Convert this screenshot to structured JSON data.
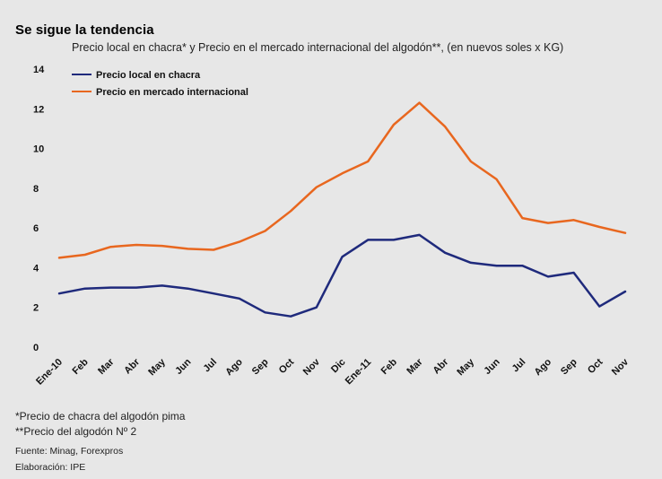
{
  "title": "Se sigue la tendencia",
  "subtitle": "Precio local en chacra* y Precio en el mercado internacional del algodón**, (en nuevos soles x KG)",
  "footnotes": {
    "note1": "*Precio de chacra del algodón pima",
    "note2": "**Precio del algodón Nº 2",
    "source": "Fuente: Minag, Forexpros",
    "elaboration": "Elaboración: IPE"
  },
  "colors": {
    "local": "#1f2a7c",
    "international": "#e8671f"
  },
  "chart_data": {
    "type": "line",
    "title": "Se sigue la tendencia",
    "xlabel": "",
    "ylabel": "",
    "ylim": [
      0,
      14
    ],
    "yticks": [
      0,
      2,
      4,
      6,
      8,
      10,
      12,
      14
    ],
    "grid": false,
    "legend_position": "top-left",
    "categories": [
      "Ene-10",
      "Feb",
      "Mar",
      "Abr",
      "May",
      "Jun",
      "Jul",
      "Ago",
      "Sep",
      "Oct",
      "Nov",
      "Dic",
      "Ene-11",
      "Feb",
      "Mar",
      "Abr",
      "May",
      "Jun",
      "Jul",
      "Ago",
      "Sep",
      "Oct",
      "Nov"
    ],
    "series": [
      {
        "name": "Precio local en chacra",
        "color": "#1f2a7c",
        "values": [
          2.7,
          2.95,
          3.0,
          3.0,
          3.1,
          2.95,
          2.7,
          2.45,
          1.75,
          1.55,
          2.0,
          4.55,
          5.4,
          5.4,
          5.65,
          4.75,
          4.25,
          4.1,
          4.1,
          3.55,
          3.75,
          2.05,
          2.8
        ]
      },
      {
        "name": "Precio en mercado internacional",
        "color": "#e8671f",
        "values": [
          4.5,
          4.65,
          5.05,
          5.15,
          5.1,
          4.95,
          4.9,
          5.3,
          5.85,
          6.85,
          8.05,
          8.75,
          9.35,
          11.2,
          12.3,
          11.1,
          9.35,
          8.45,
          6.5,
          6.25,
          6.4,
          6.05,
          5.75
        ]
      }
    ]
  }
}
